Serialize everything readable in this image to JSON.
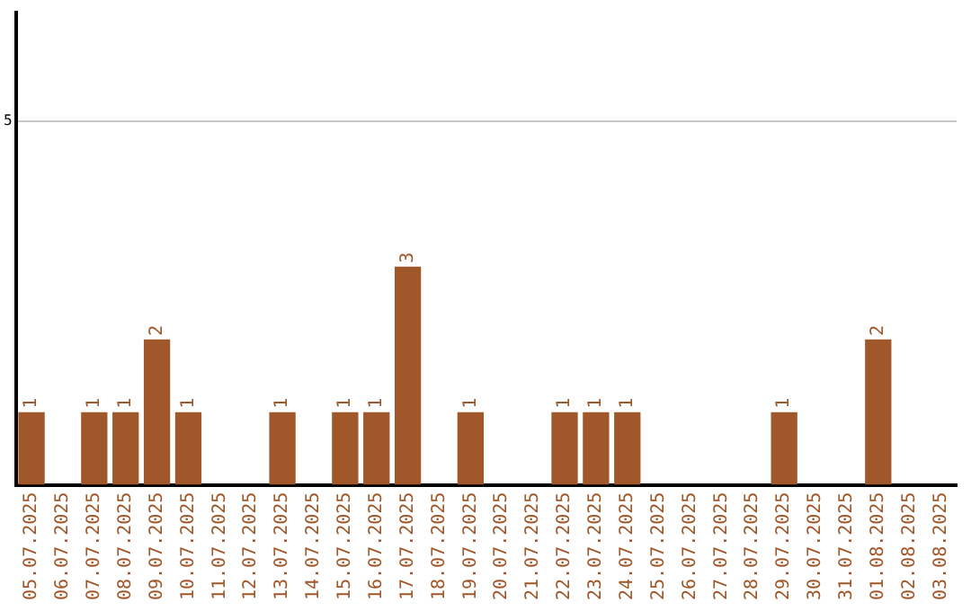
{
  "chart_data": {
    "type": "bar",
    "categories": [
      "05.07.2025",
      "06.07.2025",
      "07.07.2025",
      "08.07.2025",
      "09.07.2025",
      "10.07.2025",
      "11.07.2025",
      "12.07.2025",
      "13.07.2025",
      "14.07.2025",
      "15.07.2025",
      "16.07.2025",
      "17.07.2025",
      "18.07.2025",
      "19.07.2025",
      "20.07.2025",
      "21.07.2025",
      "22.07.2025",
      "23.07.2025",
      "24.07.2025",
      "25.07.2025",
      "26.07.2025",
      "27.07.2025",
      "28.07.2025",
      "29.07.2025",
      "30.07.2025",
      "31.07.2025",
      "01.08.2025",
      "02.08.2025",
      "03.08.2025"
    ],
    "values": [
      1,
      0,
      1,
      1,
      2,
      1,
      0,
      0,
      1,
      0,
      1,
      1,
      3,
      0,
      1,
      0,
      0,
      1,
      1,
      1,
      0,
      0,
      0,
      0,
      1,
      0,
      0,
      2,
      0,
      0
    ],
    "value_labels": [
      "1",
      null,
      "1",
      "1",
      "2",
      "1",
      null,
      null,
      "1",
      null,
      "1",
      "1",
      "3",
      null,
      "1",
      null,
      null,
      "1",
      "1",
      "1",
      null,
      null,
      null,
      null,
      "1",
      null,
      null,
      "2",
      null,
      null
    ],
    "color": "#a0572a",
    "ylim": [
      0,
      6.5
    ],
    "yticks": [
      5
    ],
    "grid": "y",
    "legend": false
  }
}
